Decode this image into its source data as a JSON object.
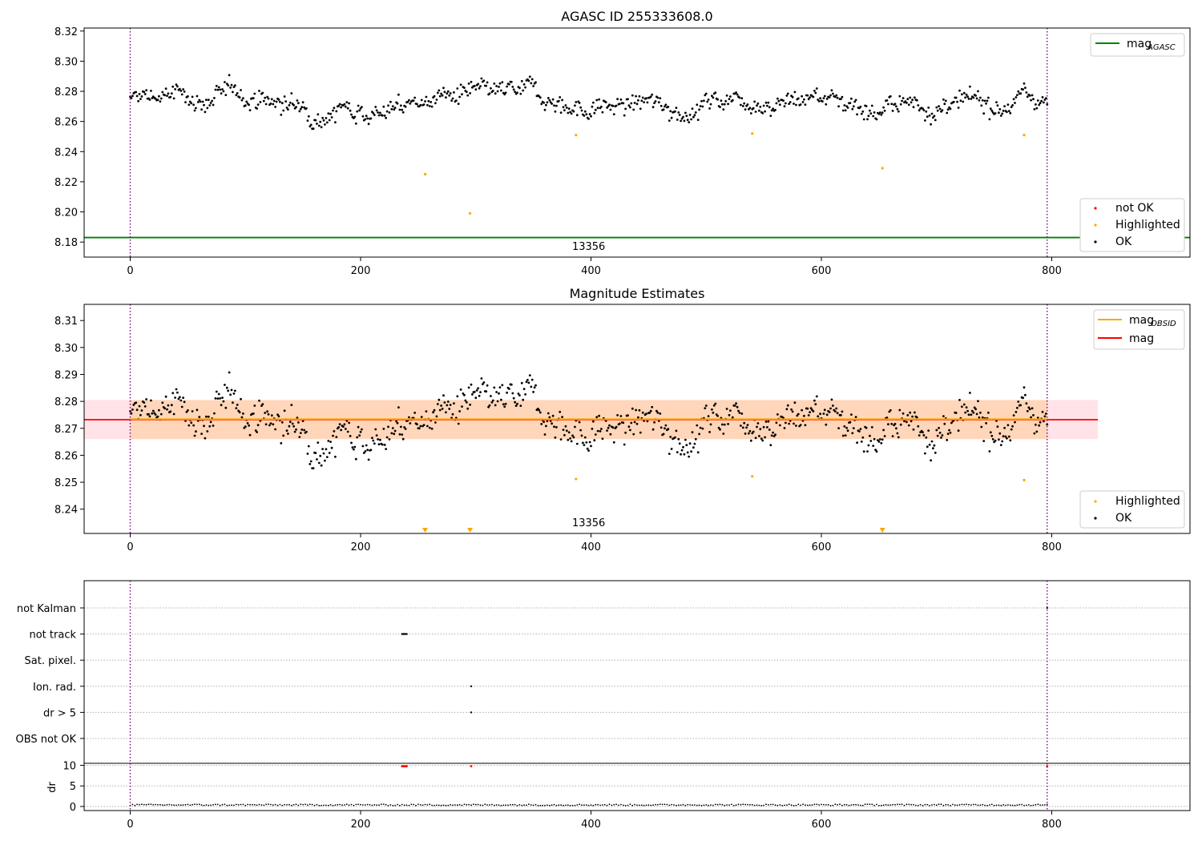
{
  "chart_data": [
    {
      "type": "scatter",
      "title": "AGASC ID 255333608.0",
      "xlim": [
        -40,
        920
      ],
      "ylim": [
        8.17,
        8.322
      ],
      "xticks": [
        "0",
        "200",
        "400",
        "600",
        "800"
      ],
      "yticks": [
        "8.18",
        "8.20",
        "8.22",
        "8.24",
        "8.26",
        "8.28",
        "8.30",
        "8.32"
      ],
      "obsid_label": "13356",
      "obsid_boundaries": [
        0,
        796
      ],
      "hline": {
        "name": "mag_AGASC",
        "y": 8.183,
        "color": "#008000"
      },
      "legend_upper": [
        {
          "label": "mag",
          "sub": "AGASC",
          "color": "#008000"
        }
      ],
      "legend_lower": [
        {
          "label": "not OK",
          "color": "#ff0000"
        },
        {
          "label": "Highlighted",
          "color": "#ffa500"
        },
        {
          "label": "OK",
          "color": "#000000"
        }
      ],
      "series": [
        {
          "name": "OK",
          "color": "#000000",
          "x_range": [
            0,
            796
          ],
          "y_center": 8.273,
          "y_spread": 0.0065
        },
        {
          "name": "Highlighted",
          "color": "#ffa500",
          "points": [
            [
              256,
              8.225
            ],
            [
              295,
              8.199
            ],
            [
              387,
              8.251
            ],
            [
              540,
              8.252
            ],
            [
              653,
              8.229
            ],
            [
              776,
              8.251
            ]
          ]
        }
      ]
    },
    {
      "type": "scatter",
      "title": "Magnitude Estimates",
      "xlim": [
        -40,
        920
      ],
      "ylim": [
        8.231,
        8.316
      ],
      "xticks": [
        "0",
        "200",
        "400",
        "600",
        "800"
      ],
      "yticks": [
        "8.24",
        "8.25",
        "8.26",
        "8.27",
        "8.28",
        "8.29",
        "8.30",
        "8.31"
      ],
      "obsid_label": "13356",
      "obsid_boundaries": [
        0,
        796
      ],
      "mag": 8.2732,
      "mag_band": [
        8.266,
        8.2805
      ],
      "band_x": [
        -40,
        840
      ],
      "mag_obsid": 8.2734,
      "mag_obsid_band": [
        8.266,
        8.2805
      ],
      "legend_upper": [
        {
          "label": "mag",
          "sub": "OBSID",
          "color": "#ffa500"
        },
        {
          "label": "mag",
          "sub": "",
          "color": "#ff0000"
        }
      ],
      "legend_lower": [
        {
          "label": "Highlighted",
          "color": "#ffa500"
        },
        {
          "label": "OK",
          "color": "#000000"
        }
      ],
      "series": [
        {
          "name": "OK",
          "color": "#000000",
          "x_range": [
            0,
            796
          ],
          "y_center": 8.273,
          "y_spread": 0.0065
        },
        {
          "name": "Highlighted",
          "color": "#ffa500",
          "points": [
            [
              387,
              8.2512
            ],
            [
              540,
              8.2522
            ],
            [
              776,
              8.2508
            ]
          ],
          "below_range_markers": [
            256,
            295,
            653
          ]
        }
      ]
    },
    {
      "type": "scatter",
      "title": "",
      "xlim": [
        -40,
        920
      ],
      "xticks": [
        "0",
        "200",
        "400",
        "600",
        "800"
      ],
      "flag_rows": [
        "not Kalman",
        "not track",
        "Sat. pixel.",
        "Ion. rad.",
        "dr > 5",
        "OBS not OK"
      ],
      "flags": {
        "not Kalman": [
          796
        ],
        "not track": [
          236,
          237,
          238,
          239,
          240
        ],
        "Sat. pixel.": [],
        "Ion. rad.": [
          296
        ],
        "dr > 5": [
          296
        ],
        "OBS not OK": []
      },
      "dr_panel": {
        "ylabel": "dr",
        "yticks": [
          "0",
          "5",
          "10"
        ],
        "ylim": [
          -1,
          10.5
        ],
        "baseline": 0.2,
        "outliers": [
          [
            236,
            9.8
          ],
          [
            237,
            9.8
          ],
          [
            238,
            9.8
          ],
          [
            239,
            9.8
          ],
          [
            240,
            9.8
          ],
          [
            296,
            9.8
          ],
          [
            796,
            9.8
          ]
        ]
      },
      "obsid_boundaries": [
        0,
        796
      ]
    }
  ]
}
